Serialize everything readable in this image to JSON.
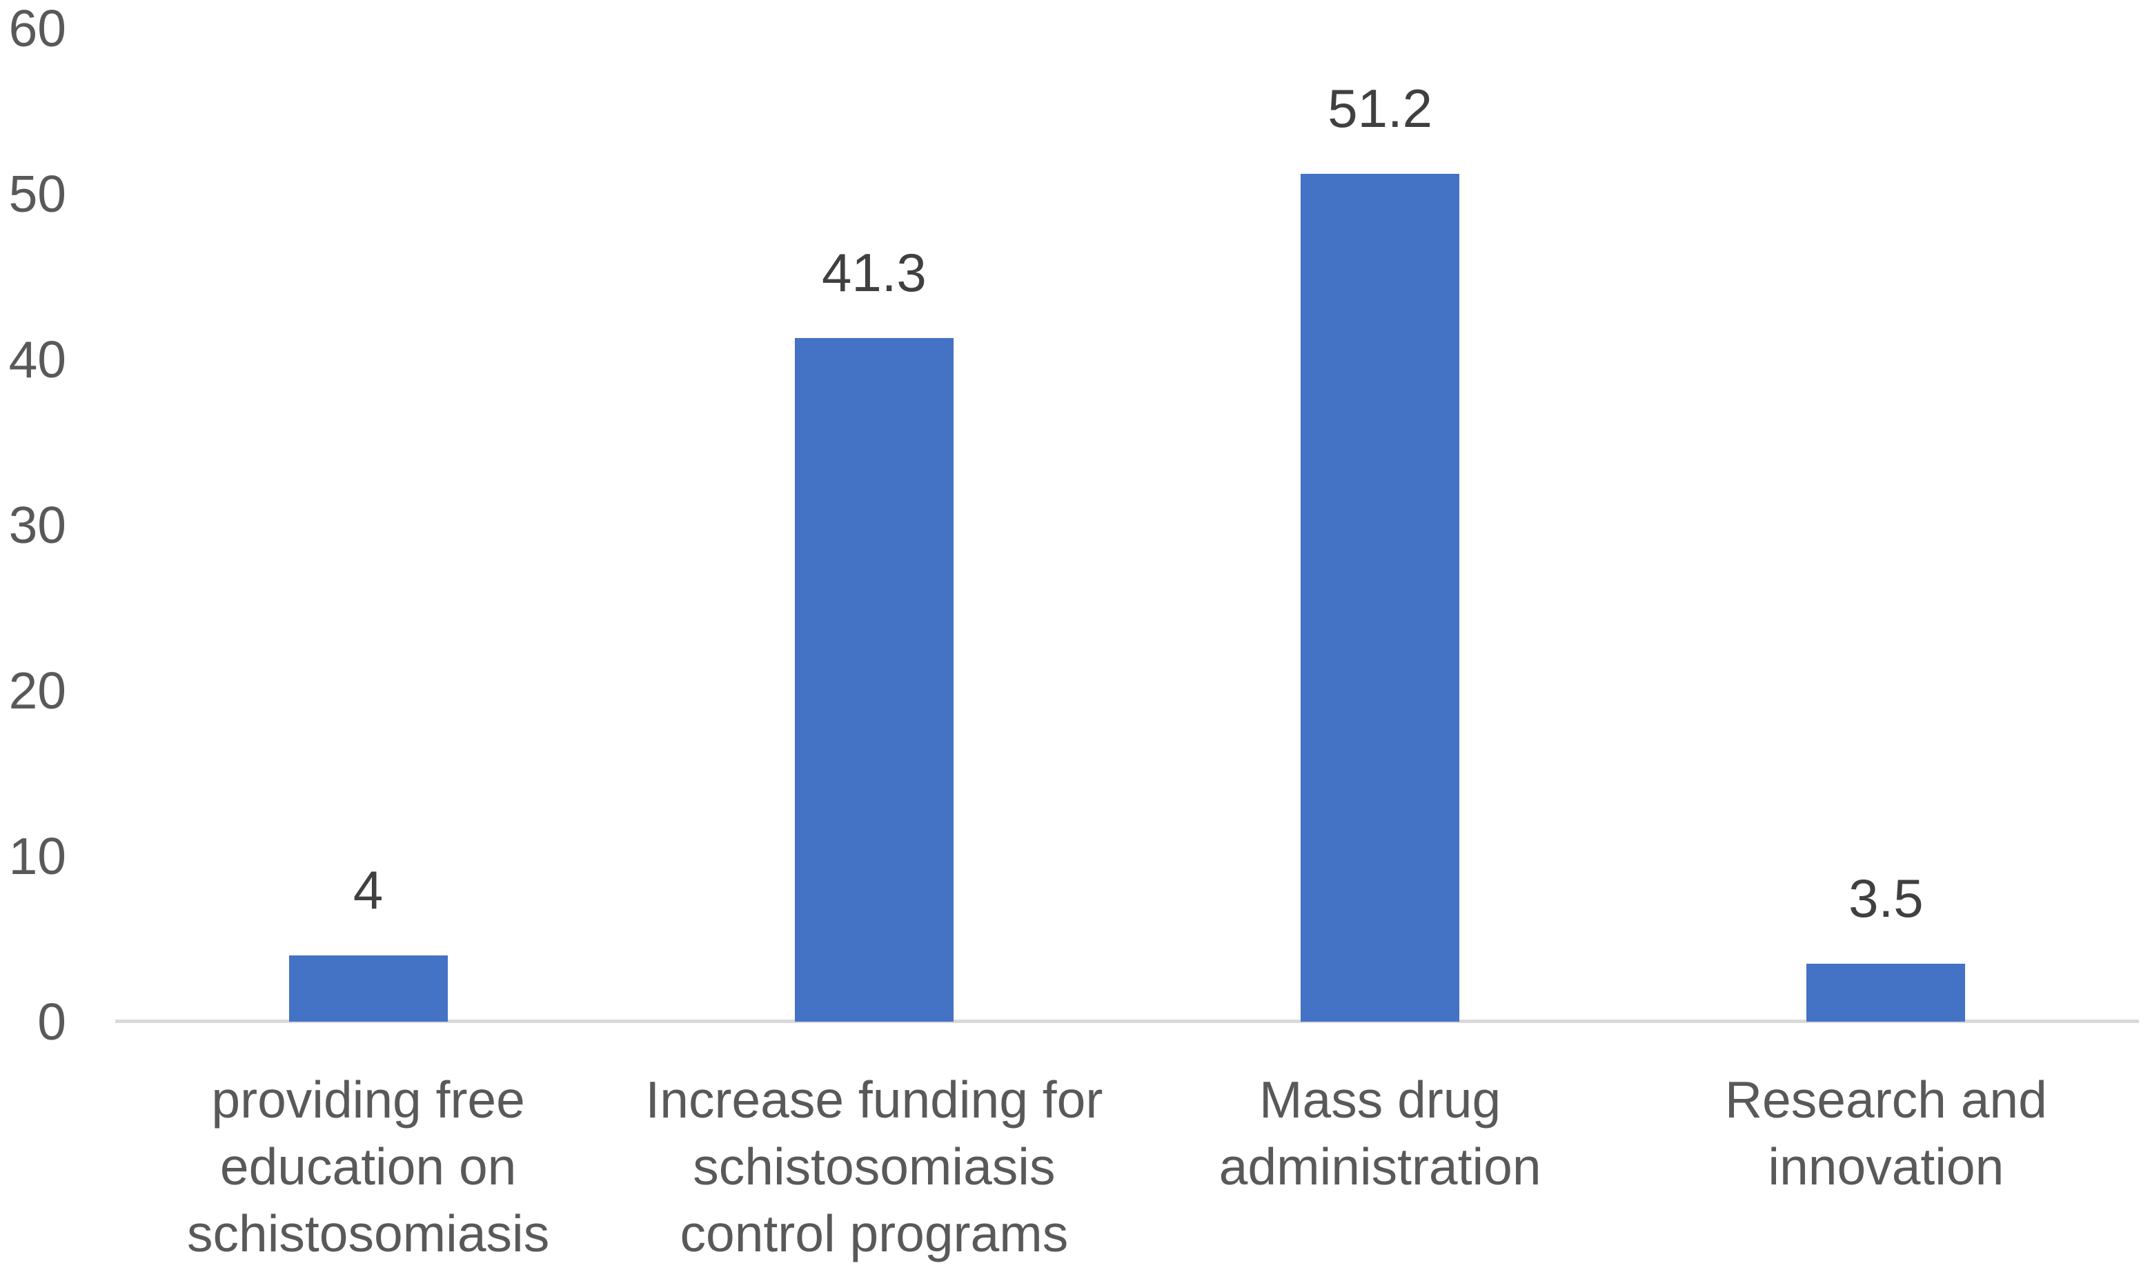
{
  "chart_data": {
    "type": "bar",
    "title": "",
    "xlabel": "",
    "ylabel": "",
    "categories": [
      "providing free education on schistosomiasis",
      "Increase funding for schistosomiasis control programs",
      "Mass drug administration",
      "Research and innovation"
    ],
    "categories_wrapped": [
      [
        "providing free",
        "education on",
        "schistosomiasis"
      ],
      [
        "Increase funding for",
        "schistosomiasis",
        "control programs"
      ],
      [
        "Mass drug",
        "administration"
      ],
      [
        "Research and",
        "innovation"
      ]
    ],
    "values": [
      4,
      41.3,
      51.2,
      3.5
    ],
    "data_labels": [
      "4",
      "41.3",
      "51.2",
      "3.5"
    ],
    "yticks": [
      "0",
      "10",
      "20",
      "30",
      "40",
      "50",
      "60"
    ],
    "ytick_values": [
      0,
      10,
      20,
      30,
      40,
      50,
      60
    ],
    "ylim": [
      0,
      60
    ],
    "grid": false,
    "legend": "none",
    "colors": {
      "bar": "#4472C4",
      "axis_line": "#D9D9D9",
      "tick_label": "#595959",
      "category_label": "#595959",
      "data_label": "#404040",
      "background": "#FFFFFF"
    }
  }
}
